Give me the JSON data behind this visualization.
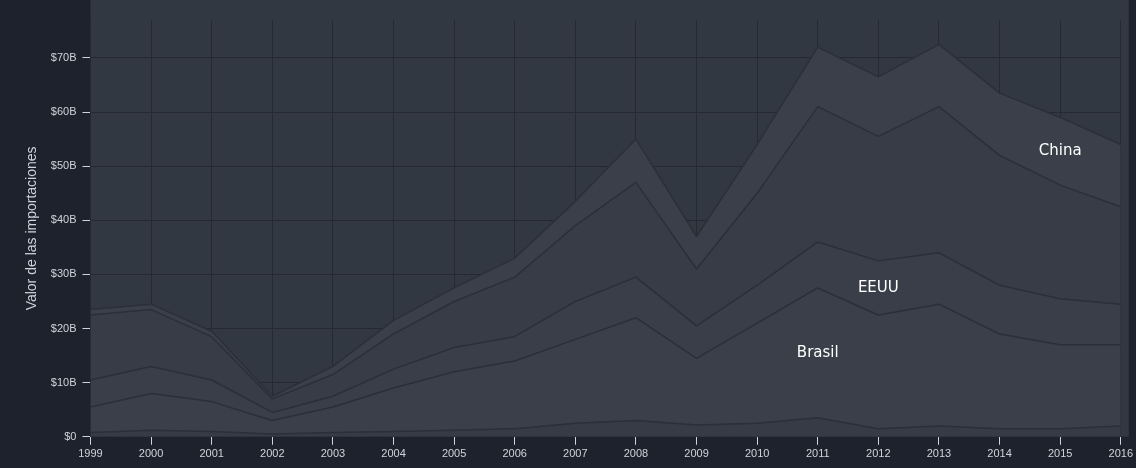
{
  "chart_data": {
    "type": "area",
    "stacked": true,
    "ylabel": "Valor de las importaciones",
    "categories": [
      "1999",
      "2000",
      "2001",
      "2002",
      "2003",
      "2004",
      "2005",
      "2006",
      "2007",
      "2008",
      "2009",
      "2010",
      "2011",
      "2012",
      "2013",
      "2014",
      "2015",
      "2016"
    ],
    "series": [
      {
        "color": "#363b45",
        "values": [
          0.8,
          1.2,
          1,
          0.5,
          0.8,
          1,
          1.2,
          1.5,
          2.5,
          3,
          2.2,
          2.5,
          3.5,
          1.5,
          2,
          1.5,
          1.5,
          2
        ]
      },
      {
        "name": "Brasil",
        "color": "#3a3f4a",
        "values": [
          4.7,
          6.8,
          5.5,
          2.5,
          4.7,
          8,
          10.8,
          12.5,
          15.5,
          19,
          12.3,
          18.5,
          24,
          21,
          22.5,
          17.5,
          15.5,
          15
        ]
      },
      {
        "name": "EEUU",
        "color": "#393e49",
        "values": [
          5,
          5,
          4,
          1.5,
          2,
          3.5,
          4.5,
          4.5,
          7,
          7.5,
          6,
          7,
          8.5,
          10,
          9.5,
          9,
          8.5,
          7.5
        ]
      },
      {
        "color": "#373c47",
        "values": [
          12,
          10.5,
          8,
          2.5,
          4,
          6.5,
          8.5,
          11,
          14,
          17.5,
          10.5,
          17,
          25,
          23,
          27,
          24,
          21,
          18
        ]
      },
      {
        "name": "China",
        "color": "#3a3f4a",
        "values": [
          1,
          1,
          1,
          0.5,
          1.5,
          2.5,
          2.5,
          3.5,
          4.5,
          8,
          6,
          9,
          11,
          11,
          11.5,
          11.5,
          12.5,
          11.5
        ]
      }
    ],
    "ylim": [
      0,
      77
    ],
    "yticks": [
      {
        "value": 0,
        "label": "$0"
      },
      {
        "value": 10,
        "label": "$10B"
      },
      {
        "value": 20,
        "label": "$20B"
      },
      {
        "value": 30,
        "label": "$30B"
      },
      {
        "value": 40,
        "label": "$40B"
      },
      {
        "value": 50,
        "label": "$50B"
      },
      {
        "value": 60,
        "label": "$60B"
      },
      {
        "value": 70,
        "label": "$70B"
      }
    ],
    "grid": true,
    "legend": false
  }
}
